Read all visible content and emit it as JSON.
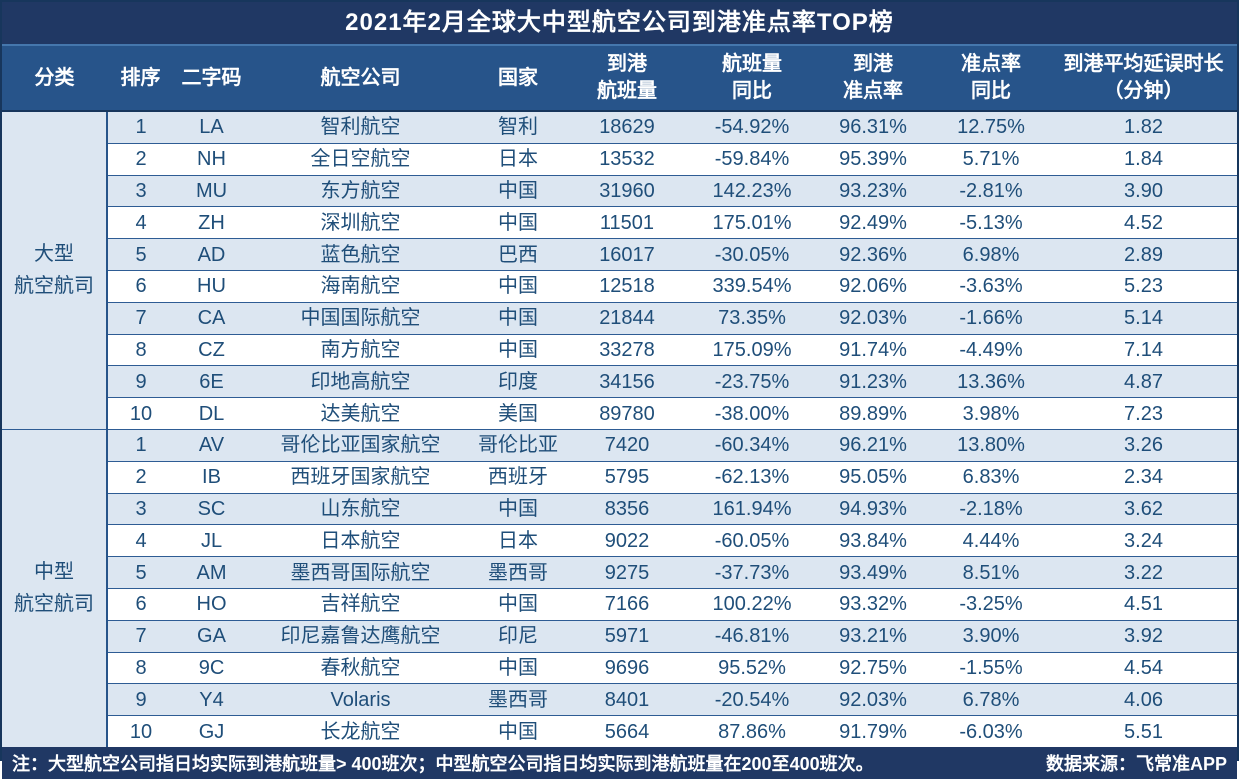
{
  "chart_data": {
    "type": "table",
    "title": "2021年2月全球大中型航空公司到港准点率TOP榜",
    "columns": [
      {
        "lines": [
          "分类"
        ]
      },
      {
        "lines": [
          "排序"
        ]
      },
      {
        "lines": [
          "二字码"
        ]
      },
      {
        "lines": [
          "航空公司"
        ]
      },
      {
        "lines": [
          "国家"
        ]
      },
      {
        "lines": [
          "到港",
          "航班量"
        ]
      },
      {
        "lines": [
          "航班量",
          "同比"
        ]
      },
      {
        "lines": [
          "到港",
          "准点率"
        ]
      },
      {
        "lines": [
          "准点率",
          "同比"
        ]
      },
      {
        "lines": [
          "到港平均延误时长",
          "（分钟）"
        ]
      }
    ],
    "sections": [
      {
        "category_lines": [
          "大型",
          "航空航司"
        ],
        "rows": [
          [
            "1",
            "LA",
            "智利航空",
            "智利",
            "18629",
            "-54.92%",
            "96.31%",
            "12.75%",
            "1.82"
          ],
          [
            "2",
            "NH",
            "全日空航空",
            "日本",
            "13532",
            "-59.84%",
            "95.39%",
            "5.71%",
            "1.84"
          ],
          [
            "3",
            "MU",
            "东方航空",
            "中国",
            "31960",
            "142.23%",
            "93.23%",
            "-2.81%",
            "3.90"
          ],
          [
            "4",
            "ZH",
            "深圳航空",
            "中国",
            "11501",
            "175.01%",
            "92.49%",
            "-5.13%",
            "4.52"
          ],
          [
            "5",
            "AD",
            "蓝色航空",
            "巴西",
            "16017",
            "-30.05%",
            "92.36%",
            "6.98%",
            "2.89"
          ],
          [
            "6",
            "HU",
            "海南航空",
            "中国",
            "12518",
            "339.54%",
            "92.06%",
            "-3.63%",
            "5.23"
          ],
          [
            "7",
            "CA",
            "中国国际航空",
            "中国",
            "21844",
            "73.35%",
            "92.03%",
            "-1.66%",
            "5.14"
          ],
          [
            "8",
            "CZ",
            "南方航空",
            "中国",
            "33278",
            "175.09%",
            "91.74%",
            "-4.49%",
            "7.14"
          ],
          [
            "9",
            "6E",
            "印地高航空",
            "印度",
            "34156",
            "-23.75%",
            "91.23%",
            "13.36%",
            "4.87"
          ],
          [
            "10",
            "DL",
            "达美航空",
            "美国",
            "89780",
            "-38.00%",
            "89.89%",
            "3.98%",
            "7.23"
          ]
        ]
      },
      {
        "category_lines": [
          "中型",
          "航空航司"
        ],
        "rows": [
          [
            "1",
            "AV",
            "哥伦比亚国家航空",
            "哥伦比亚",
            "7420",
            "-60.34%",
            "96.21%",
            "13.80%",
            "3.26"
          ],
          [
            "2",
            "IB",
            "西班牙国家航空",
            "西班牙",
            "5795",
            "-62.13%",
            "95.05%",
            "6.83%",
            "2.34"
          ],
          [
            "3",
            "SC",
            "山东航空",
            "中国",
            "8356",
            "161.94%",
            "94.93%",
            "-2.18%",
            "3.62"
          ],
          [
            "4",
            "JL",
            "日本航空",
            "日本",
            "9022",
            "-60.05%",
            "93.84%",
            "4.44%",
            "3.24"
          ],
          [
            "5",
            "AM",
            "墨西哥国际航空",
            "墨西哥",
            "9275",
            "-37.73%",
            "93.49%",
            "8.51%",
            "3.22"
          ],
          [
            "6",
            "HO",
            "吉祥航空",
            "中国",
            "7166",
            "100.22%",
            "93.32%",
            "-3.25%",
            "4.51"
          ],
          [
            "7",
            "GA",
            "印尼嘉鲁达鹰航空",
            "印尼",
            "5971",
            "-46.81%",
            "93.21%",
            "3.90%",
            "3.92"
          ],
          [
            "8",
            "9C",
            "春秋航空",
            "中国",
            "9696",
            "95.52%",
            "92.75%",
            "-1.55%",
            "4.54"
          ],
          [
            "9",
            "Y4",
            "Volaris",
            "墨西哥",
            "8401",
            "-20.54%",
            "92.03%",
            "6.78%",
            "4.06"
          ],
          [
            "10",
            "GJ",
            "长龙航空",
            "中国",
            "5664",
            "87.86%",
            "91.79%",
            "-6.03%",
            "5.51"
          ]
        ]
      }
    ],
    "note": "注：大型航空公司指日均实际到港航班量> 400班次；中型航空公司指日均实际到港航班量在200至400班次。",
    "source": "数据来源：飞常准APP"
  },
  "colors": {
    "title_bar": "#203864",
    "header_row": "#27548a",
    "stripe_row": "#dce6f1",
    "plain_row": "#ffffff",
    "text_navy": "#1f4e79",
    "row_border": "#2e5c94",
    "title_divider": "#4577ad",
    "outer_border": "#17365c"
  }
}
